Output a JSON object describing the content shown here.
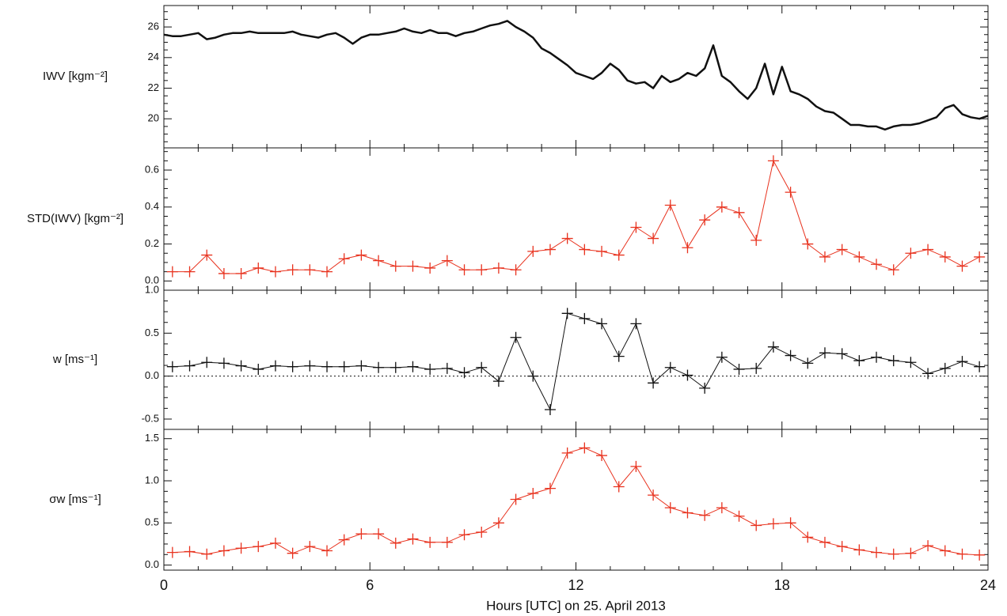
{
  "chart_data": [
    {
      "type": "line",
      "ylabel": "IWV [kgm⁻²]",
      "color": "#111111",
      "marker": "none",
      "xlim": [
        0,
        24
      ],
      "xticks": [
        0,
        6,
        12,
        18,
        24
      ],
      "ylim": [
        18.1,
        27.4
      ],
      "yticks": [
        20,
        22,
        24,
        26
      ],
      "x": [
        0,
        0.25,
        0.5,
        0.75,
        1,
        1.25,
        1.5,
        1.75,
        2,
        2.25,
        2.5,
        2.75,
        3,
        3.25,
        3.5,
        3.75,
        4,
        4.25,
        4.5,
        4.75,
        5,
        5.25,
        5.5,
        5.75,
        6,
        6.25,
        6.5,
        6.75,
        7,
        7.25,
        7.5,
        7.75,
        8,
        8.25,
        8.5,
        8.75,
        9,
        9.25,
        9.5,
        9.75,
        10,
        10.25,
        10.5,
        10.75,
        11,
        11.25,
        11.5,
        11.75,
        12,
        12.25,
        12.5,
        12.75,
        13,
        13.25,
        13.5,
        13.75,
        14,
        14.25,
        14.5,
        14.75,
        15,
        15.25,
        15.5,
        15.75,
        16,
        16.25,
        16.5,
        16.75,
        17,
        17.25,
        17.5,
        17.75,
        18,
        18.25,
        18.5,
        18.75,
        19,
        19.25,
        19.5,
        19.75,
        20,
        20.25,
        20.5,
        20.75,
        21,
        21.25,
        21.5,
        21.75,
        22,
        22.25,
        22.5,
        22.75,
        23,
        23.25,
        23.5,
        23.75,
        24
      ],
      "values": [
        25.5,
        25.4,
        25.4,
        25.5,
        25.6,
        25.2,
        25.3,
        25.5,
        25.6,
        25.6,
        25.7,
        25.6,
        25.6,
        25.6,
        25.6,
        25.7,
        25.5,
        25.4,
        25.3,
        25.5,
        25.6,
        25.3,
        24.9,
        25.3,
        25.5,
        25.5,
        25.6,
        25.7,
        25.9,
        25.7,
        25.6,
        25.8,
        25.6,
        25.6,
        25.4,
        25.6,
        25.7,
        25.9,
        26.1,
        26.2,
        26.4,
        26.0,
        25.7,
        25.3,
        24.6,
        24.3,
        23.9,
        23.5,
        23.0,
        22.8,
        22.6,
        23.0,
        23.6,
        23.2,
        22.5,
        22.3,
        22.4,
        22.0,
        22.8,
        22.4,
        22.6,
        23.0,
        22.8,
        23.3,
        24.8,
        22.8,
        22.4,
        21.8,
        21.3,
        22.0,
        23.6,
        21.6,
        23.4,
        21.8,
        21.6,
        21.3,
        20.8,
        20.5,
        20.4,
        20.0,
        19.6,
        19.6,
        19.5,
        19.5,
        19.3,
        19.5,
        19.6,
        19.6,
        19.7,
        19.9,
        20.1,
        20.7,
        20.9,
        20.3,
        20.1,
        20.0,
        20.2
      ]
    },
    {
      "type": "line",
      "ylabel": "STD(IWV) [kgm⁻²]",
      "color": "#e8321e",
      "marker": "plus",
      "xlim": [
        0,
        24
      ],
      "xticks": [
        0,
        6,
        12,
        18,
        24
      ],
      "ylim": [
        -0.05,
        0.72
      ],
      "yticks": [
        {
          "value": 0,
          "label": "0.0"
        },
        0.2,
        0.4,
        0.6
      ],
      "x": [
        0.25,
        0.75,
        1.25,
        1.75,
        2.25,
        2.75,
        3.25,
        3.75,
        4.25,
        4.75,
        5.25,
        5.75,
        6.25,
        6.75,
        7.25,
        7.75,
        8.25,
        8.75,
        9.25,
        9.75,
        10.25,
        10.75,
        11.25,
        11.75,
        12.25,
        12.75,
        13.25,
        13.75,
        14.25,
        14.75,
        15.25,
        15.75,
        16.25,
        16.75,
        17.25,
        17.75,
        18.25,
        18.75,
        19.25,
        19.75,
        20.25,
        20.75,
        21.25,
        21.75,
        22.25,
        22.75,
        23.25,
        23.75
      ],
      "values": [
        0.05,
        0.05,
        0.14,
        0.04,
        0.04,
        0.07,
        0.05,
        0.06,
        0.06,
        0.05,
        0.12,
        0.14,
        0.11,
        0.08,
        0.08,
        0.07,
        0.11,
        0.06,
        0.06,
        0.07,
        0.06,
        0.16,
        0.17,
        0.23,
        0.17,
        0.16,
        0.14,
        0.29,
        0.23,
        0.41,
        0.18,
        0.33,
        0.4,
        0.37,
        0.22,
        0.65,
        0.48,
        0.2,
        0.13,
        0.17,
        0.13,
        0.09,
        0.06,
        0.15,
        0.17,
        0.13,
        0.08,
        0.13
      ]
    },
    {
      "type": "line",
      "ylabel": "w [ms⁻¹]",
      "color": "#111111",
      "marker": "plus",
      "zero_line": true,
      "xlim": [
        0,
        24
      ],
      "xticks": [
        0,
        6,
        12,
        18,
        24
      ],
      "ylim": [
        -0.62,
        1.0
      ],
      "yticks": [
        -0.5,
        {
          "value": 0,
          "label": "0.0"
        },
        0.5,
        {
          "value": 1,
          "label": "1.0"
        }
      ],
      "x": [
        0.25,
        0.75,
        1.25,
        1.75,
        2.25,
        2.75,
        3.25,
        3.75,
        4.25,
        4.75,
        5.25,
        5.75,
        6.25,
        6.75,
        7.25,
        7.75,
        8.25,
        8.75,
        9.25,
        9.75,
        10.25,
        10.75,
        11.25,
        11.75,
        12.25,
        12.75,
        13.25,
        13.75,
        14.25,
        14.75,
        15.25,
        15.75,
        16.25,
        16.75,
        17.25,
        17.75,
        18.25,
        18.75,
        19.25,
        19.75,
        20.25,
        20.75,
        21.25,
        21.75,
        22.25,
        22.75,
        23.25,
        23.75
      ],
      "values": [
        0.11,
        0.12,
        0.16,
        0.15,
        0.12,
        0.08,
        0.12,
        0.11,
        0.12,
        0.11,
        0.11,
        0.12,
        0.1,
        0.1,
        0.11,
        0.08,
        0.09,
        0.04,
        0.1,
        -0.06,
        0.45,
        0.0,
        -0.39,
        0.73,
        0.67,
        0.61,
        0.23,
        0.61,
        -0.08,
        0.1,
        0.01,
        -0.14,
        0.22,
        0.08,
        0.09,
        0.34,
        0.24,
        0.15,
        0.27,
        0.26,
        0.18,
        0.22,
        0.18,
        0.16,
        0.03,
        0.09,
        0.17,
        0.11
      ]
    },
    {
      "type": "line",
      "ylabel": "σw [ms⁻¹]",
      "xlabel": "Hours [UTC] on 25. April 2013",
      "color": "#e8321e",
      "marker": "plus",
      "xlim": [
        0,
        24
      ],
      "xticks": [
        0,
        6,
        12,
        18,
        24
      ],
      "ylim": [
        -0.06,
        1.61
      ],
      "yticks": [
        {
          "value": 0,
          "label": "0.0"
        },
        0.5,
        {
          "value": 1,
          "label": "1.0"
        },
        1.5
      ],
      "x": [
        0.25,
        0.75,
        1.25,
        1.75,
        2.25,
        2.75,
        3.25,
        3.75,
        4.25,
        4.75,
        5.25,
        5.75,
        6.25,
        6.75,
        7.25,
        7.75,
        8.25,
        8.75,
        9.25,
        9.75,
        10.25,
        10.75,
        11.25,
        11.75,
        12.25,
        12.75,
        13.25,
        13.75,
        14.25,
        14.75,
        15.25,
        15.75,
        16.25,
        16.75,
        17.25,
        17.75,
        18.25,
        18.75,
        19.25,
        19.75,
        20.25,
        20.75,
        21.25,
        21.75,
        22.25,
        22.75,
        23.25,
        23.75
      ],
      "values": [
        0.15,
        0.16,
        0.13,
        0.17,
        0.2,
        0.22,
        0.26,
        0.14,
        0.22,
        0.17,
        0.3,
        0.37,
        0.37,
        0.26,
        0.31,
        0.27,
        0.27,
        0.36,
        0.39,
        0.5,
        0.78,
        0.85,
        0.91,
        1.33,
        1.39,
        1.3,
        0.93,
        1.17,
        0.83,
        0.68,
        0.62,
        0.59,
        0.68,
        0.58,
        0.47,
        0.49,
        0.5,
        0.33,
        0.27,
        0.22,
        0.18,
        0.15,
        0.13,
        0.14,
        0.23,
        0.17,
        0.13,
        0.12
      ]
    }
  ]
}
